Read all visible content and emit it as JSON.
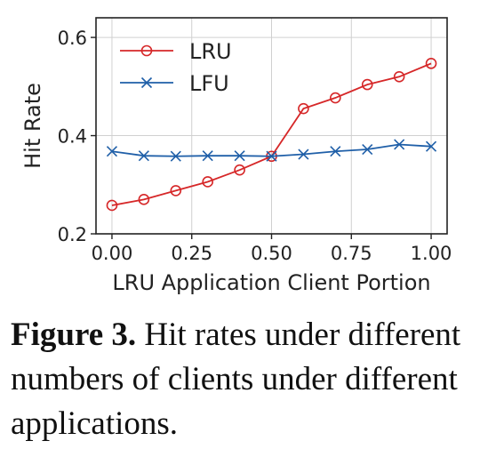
{
  "chart_data": {
    "type": "line",
    "x": [
      0.0,
      0.1,
      0.2,
      0.3,
      0.4,
      0.5,
      0.6,
      0.7,
      0.8,
      0.9,
      1.0
    ],
    "series": [
      {
        "name": "LRU",
        "color": "#d62728",
        "marker": "circle",
        "values": [
          0.258,
          0.27,
          0.288,
          0.306,
          0.33,
          0.358,
          0.455,
          0.477,
          0.504,
          0.52,
          0.547
        ]
      },
      {
        "name": "LFU",
        "color": "#1f5fa8",
        "marker": "x",
        "values": [
          0.368,
          0.359,
          0.358,
          0.359,
          0.359,
          0.358,
          0.362,
          0.368,
          0.372,
          0.382,
          0.378
        ]
      }
    ],
    "xlabel": "LRU Application Client Portion",
    "ylabel": "Hit Rate",
    "xticks": [
      "0.00",
      "0.25",
      "0.50",
      "0.75",
      "1.00"
    ],
    "xtick_values": [
      0.0,
      0.25,
      0.5,
      0.75,
      1.0
    ],
    "yticks": [
      "0.2",
      "0.4",
      "0.6"
    ],
    "ytick_values": [
      0.2,
      0.4,
      0.6
    ],
    "xlim": [
      -0.05,
      1.05
    ],
    "ylim": [
      0.2,
      0.64
    ],
    "grid": true,
    "legend": "top-left"
  },
  "caption": {
    "label": "Figure 3.",
    "text": " Hit rates under different numbers of clients under different applications."
  }
}
